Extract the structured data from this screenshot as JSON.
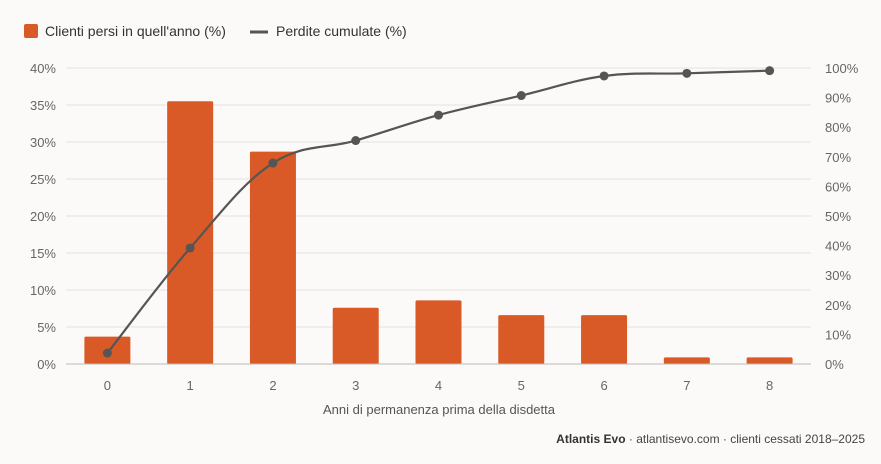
{
  "chart_data": {
    "type": "bar",
    "categories": [
      "0",
      "1",
      "2",
      "3",
      "4",
      "5",
      "6",
      "7",
      "8"
    ],
    "series": [
      {
        "name": "Clienti persi in quell'anno (%)",
        "type": "bar",
        "axis": "left",
        "color": "#d95a27",
        "values": [
          3.7,
          35.5,
          28.7,
          7.6,
          8.6,
          6.6,
          6.6,
          0.9,
          0.9
        ]
      },
      {
        "name": "Perdite cumulate (%)",
        "type": "line",
        "axis": "right",
        "color": "#555555",
        "values": [
          3.7,
          39.2,
          67.9,
          75.5,
          84.1,
          90.7,
          97.3,
          98.2,
          99.1
        ]
      }
    ],
    "xlabel": "Anni di permanenza prima della disdetta",
    "ylim_left": [
      0,
      40
    ],
    "yticks_left": [
      "0%",
      "5%",
      "10%",
      "15%",
      "20%",
      "25%",
      "30%",
      "35%",
      "40%"
    ],
    "ylim_right": [
      0,
      100
    ],
    "yticks_right": [
      "0%",
      "10%",
      "20%",
      "30%",
      "40%",
      "50%",
      "60%",
      "70%",
      "80%",
      "90%",
      "100%"
    ],
    "grid": true,
    "legend_position": "top-left"
  },
  "footer": {
    "brand": "Atlantis Evo",
    "rest": " · atlantisevo.com · clienti cessati 2018–2025"
  }
}
